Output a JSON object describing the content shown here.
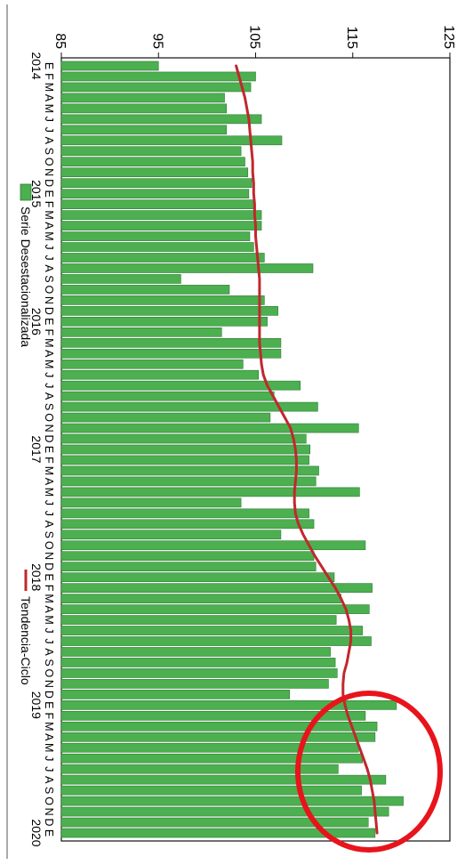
{
  "chart_data": {
    "type": "bar",
    "orientation": "rotated-90-clockwise",
    "y_axis": {
      "ylim": [
        85,
        125
      ],
      "ticks": [
        85,
        95,
        105,
        115,
        125
      ]
    },
    "month_letters": [
      "E",
      "F",
      "M",
      "A",
      "M",
      "J",
      "J",
      "A",
      "S",
      "O",
      "N",
      "D"
    ],
    "years": [
      "2014",
      "2015",
      "2016",
      "2017",
      "2018",
      "2019",
      "2020"
    ],
    "last_month_letter": "E",
    "series": [
      {
        "name": "Serie Desestacionalizada",
        "type": "bar",
        "color": "#4caf50",
        "values": [
          95.0,
          105.0,
          104.5,
          101.8,
          102.0,
          105.6,
          102.0,
          107.7,
          103.5,
          103.9,
          104.2,
          104.6,
          104.3,
          104.8,
          105.6,
          105.6,
          104.4,
          104.8,
          105.9,
          110.9,
          97.3,
          102.3,
          105.9,
          107.3,
          106.2,
          101.5,
          107.6,
          107.6,
          103.7,
          105.3,
          109.6,
          106.9,
          111.4,
          106.5,
          115.6,
          110.2,
          110.6,
          110.5,
          111.5,
          111.2,
          115.7,
          103.5,
          110.5,
          111.0,
          107.6,
          116.3,
          111.0,
          111.2,
          113.1,
          117.0,
          113.8,
          116.7,
          113.3,
          116.0,
          116.9,
          112.7,
          113.2,
          113.4,
          112.5,
          108.5,
          119.5,
          116.3,
          117.5,
          117.3,
          115.6,
          116.0,
          113.5,
          118.4,
          115.9,
          120.2,
          118.7,
          116.6,
          117.3
        ]
      },
      {
        "name": "Tendencia-Ciclo",
        "type": "line",
        "color": "#c0282d",
        "values": [
          103.0,
          103.3,
          103.6,
          103.9,
          104.1,
          104.3,
          104.4,
          104.5,
          104.6,
          104.7,
          104.7,
          104.8,
          104.8,
          104.9,
          104.9,
          105.0,
          105.0,
          105.1,
          105.2,
          105.3,
          105.4,
          105.4,
          105.4,
          105.4,
          105.4,
          105.4,
          105.4,
          105.5,
          105.6,
          105.8,
          106.2,
          106.8,
          107.4,
          108.0,
          108.6,
          108.9,
          109.1,
          109.2,
          109.2,
          109.1,
          109.0,
          109.0,
          109.1,
          109.4,
          109.9,
          110.5,
          111.1,
          111.8,
          112.5,
          113.2,
          113.8,
          114.3,
          114.6,
          114.8,
          114.8,
          114.6,
          114.4,
          114.1,
          114.0,
          114.0,
          114.2,
          114.5,
          114.9,
          115.3,
          115.7,
          116.1,
          116.5,
          116.8,
          117.0,
          117.2,
          117.3,
          117.4,
          117.5
        ]
      }
    ],
    "legend": {
      "position": "bottom"
    }
  },
  "annotation": {
    "shape": "ellipse",
    "color": "#e8141c"
  }
}
